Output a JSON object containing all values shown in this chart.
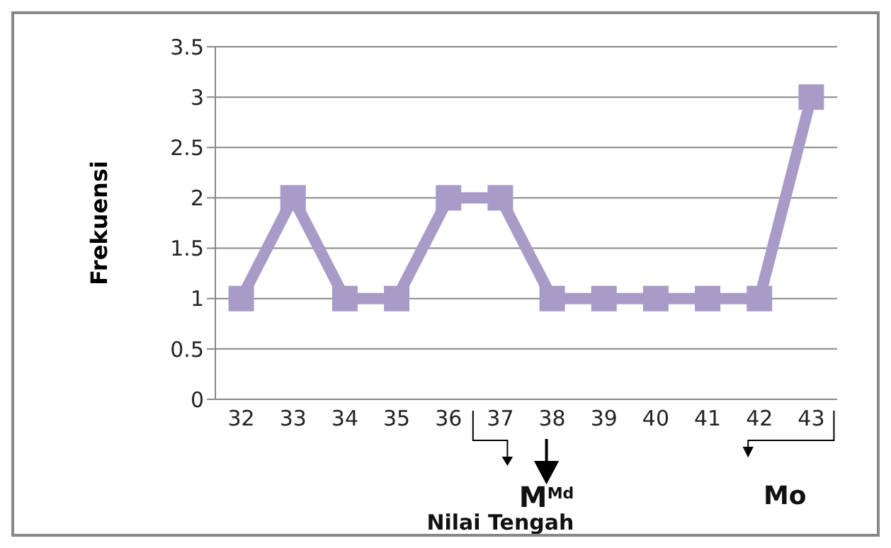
{
  "chart_data": {
    "type": "line",
    "ylabel": "Frekuensi",
    "categories": [
      "32",
      "33",
      "34",
      "35",
      "36",
      "37",
      "38",
      "39",
      "40",
      "41",
      "42",
      "43"
    ],
    "series": [
      {
        "color": "#a99bc8",
        "values": [
          1,
          2,
          1,
          1,
          2,
          2,
          1,
          1,
          1,
          1,
          1,
          3
        ]
      }
    ],
    "ylim": [
      0,
      3.5
    ],
    "yticks": [
      0,
      0.5,
      1,
      1.5,
      2,
      2.5,
      3,
      3.5
    ],
    "grid": "y",
    "legend": false,
    "marker": "square",
    "line_style": "solid",
    "annotations": [
      "M$^{Md}$",
      "Nilai Tengah",
      "Mo"
    ]
  }
}
